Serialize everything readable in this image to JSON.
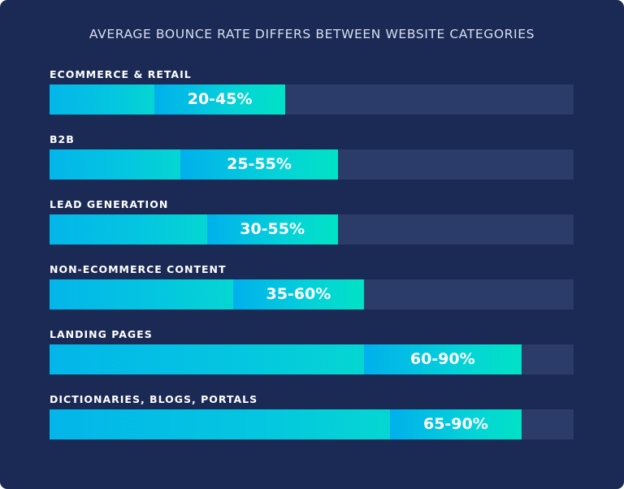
{
  "chart_data": {
    "type": "bar",
    "title": "AVERAGE BOUNCE RATE DIFFERS BETWEEN WEBSITE CATEGORIES",
    "xlim": [
      0,
      100
    ],
    "categories": [
      "ECOMMERCE & RETAIL",
      "B2B",
      "LEAD GENERATION",
      "NON-ECOMMERCE CONTENT",
      "LANDING PAGES",
      "DICTIONARIES, BLOGS, PORTALS"
    ],
    "ranges": [
      {
        "low": 20,
        "high": 45,
        "label": "20-45%"
      },
      {
        "low": 25,
        "high": 55,
        "label": "25-55%"
      },
      {
        "low": 30,
        "high": 55,
        "label": "30-55%"
      },
      {
        "low": 35,
        "high": 60,
        "label": "35-60%"
      },
      {
        "low": 60,
        "high": 90,
        "label": "60-90%"
      },
      {
        "low": 65,
        "high": 90,
        "label": "65-90%"
      }
    ],
    "colors": {
      "background": "#1b2a55",
      "track": "#2b3c6b",
      "bar_start": "#03b6ea",
      "bar_end": "#00e2c6",
      "text": "#ffffff"
    }
  }
}
